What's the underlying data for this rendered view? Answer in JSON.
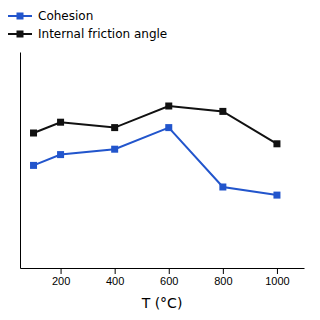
{
  "chart_data": {
    "type": "line",
    "x": [
      100,
      200,
      400,
      600,
      800,
      1000
    ],
    "series": [
      {
        "name": "Cohesion",
        "color": "#2255cc",
        "values": [
          38,
          42,
          44,
          52,
          30,
          27
        ]
      },
      {
        "name": "Internal friction angle",
        "color": "#111111",
        "values": [
          50,
          54,
          52,
          60,
          58,
          46
        ]
      }
    ],
    "xlabel": "T (°C)",
    "xlim": [
      50,
      1100
    ],
    "ylim": [
      0,
      80
    ],
    "xticks": [
      200,
      400,
      600,
      800,
      1000
    ],
    "yticks": [],
    "tick_labels": "x",
    "marker": "square",
    "line_style": "solid",
    "legend": "top-left",
    "grid": false
  }
}
